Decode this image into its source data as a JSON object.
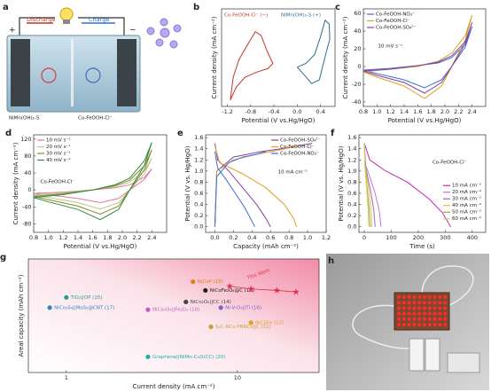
{
  "illustration": {
    "panel": "a",
    "discharge": "Discharge",
    "charge": "Charge",
    "plus": "+",
    "minus": "−",
    "left_electrode": "NiMn(OH)₂-S",
    "right_electrode": "Co-FeOOH-Cl⁻"
  },
  "photo": {
    "panel": "h"
  },
  "chart_data": [
    {
      "type": "line",
      "panel": "b",
      "xlabel": "Potential (V vs.Hg/HgO)",
      "ylabel": "Current density (mA cm⁻²)",
      "xlim": [
        -1.3,
        0.65
      ],
      "xticks": [
        -1.2,
        -0.8,
        -0.4,
        {
          "value": 0,
          "label": "0.0"
        },
        0.4
      ],
      "ylim": [
        -35,
        42
      ],
      "legend": "top",
      "series": [
        {
          "name": "Co-FeOOH-Cl⁻ (−)",
          "color": "#c0392b",
          "x": [
            -1.15,
            -1.1,
            -1.0,
            -0.85,
            -0.72,
            -0.62,
            -0.52,
            -0.42,
            -0.5,
            -0.7,
            -0.9,
            -1.05,
            -1.15
          ],
          "values": [
            -30,
            -12,
            2,
            14,
            24,
            21,
            9,
            -1,
            -5,
            -8,
            -12,
            -20,
            -30
          ]
        },
        {
          "name": "NiMn(OH)₂-S (+)",
          "color": "#2e6f8e",
          "x": [
            0.0,
            0.15,
            0.3,
            0.4,
            0.48,
            0.55,
            0.56,
            0.5,
            0.38,
            0.25,
            0.12,
            0.0
          ],
          "values": [
            -4,
            -1,
            6,
            20,
            33,
            30,
            18,
            8,
            -14,
            -17,
            -10,
            -4
          ]
        }
      ]
    },
    {
      "type": "line",
      "panel": "c",
      "xlabel": "Potential (V vs.Hg/HgO)",
      "ylabel": "Current density (mA cm⁻²)",
      "annotation": "10 mV s⁻¹",
      "xlim": [
        0.8,
        2.6
      ],
      "xticks": [
        0.8,
        {
          "value": 1,
          "label": "1.0"
        },
        1.2,
        1.4,
        1.6,
        1.8,
        {
          "value": 2,
          "label": "2.0"
        },
        2.2,
        2.4
      ],
      "ylim": [
        -45,
        65
      ],
      "yticks": [
        -40,
        -20,
        0,
        20,
        40,
        60
      ],
      "legend": "upper left",
      "x": [
        0.8,
        1.2,
        1.6,
        1.9,
        2.1,
        2.3,
        2.4,
        2.3,
        2.1,
        1.95,
        1.7,
        1.4,
        1.0,
        0.8
      ],
      "series": [
        {
          "name": "Co-FeOOH-NO₃⁻",
          "color": "#3a6fd8",
          "values": [
            -4,
            -2,
            1,
            4,
            10,
            25,
            45,
            22,
            0,
            -15,
            -24,
            -15,
            -8,
            -4
          ]
        },
        {
          "name": "Co-FeOOH-Cl⁻",
          "color": "#e0a020",
          "values": [
            -6,
            -3,
            0,
            6,
            15,
            35,
            58,
            30,
            0,
            -22,
            -36,
            -22,
            -12,
            -6
          ]
        },
        {
          "name": "Co-FeOOH-SO₄²⁻",
          "color": "#8a3fa0",
          "values": [
            -5,
            -3,
            1,
            5,
            12,
            28,
            50,
            26,
            0,
            -18,
            -30,
            -18,
            -10,
            -5
          ]
        }
      ]
    },
    {
      "type": "line",
      "panel": "d",
      "xlabel": "Potential (V vs.Hg/HgO)",
      "ylabel": "Current density (mA cm⁻²)",
      "annotation": "Co-FeOOH-Cl⁻",
      "xlim": [
        0.8,
        2.6
      ],
      "xticks": [
        0.8,
        {
          "value": 1,
          "label": "1.0"
        },
        1.2,
        1.4,
        1.6,
        1.8,
        {
          "value": 2,
          "label": "2.0"
        },
        2.2,
        2.4
      ],
      "ylim": [
        -100,
        130
      ],
      "yticks": [
        -80,
        -40,
        0,
        40,
        80,
        120
      ],
      "legend": "upper left",
      "x": [
        0.8,
        1.2,
        1.6,
        1.9,
        2.1,
        2.3,
        2.4,
        2.3,
        2.1,
        1.95,
        1.7,
        1.4,
        1.0,
        0.8
      ],
      "series": [
        {
          "name": "10 mV s⁻¹",
          "color": "#e07aa0",
          "values": [
            -8,
            -5,
            0,
            5,
            12,
            30,
            50,
            25,
            0,
            -20,
            -30,
            -20,
            -12,
            -8
          ]
        },
        {
          "name": "20 mV s⁻¹",
          "color": "#b5c98a",
          "values": [
            -12,
            -7,
            0,
            8,
            18,
            45,
            75,
            38,
            0,
            -30,
            -45,
            -30,
            -18,
            -12
          ]
        },
        {
          "name": "30 mV s⁻¹",
          "color": "#8a8a2a",
          "values": [
            -15,
            -9,
            0,
            10,
            23,
            57,
            95,
            48,
            0,
            -38,
            -57,
            -38,
            -23,
            -15
          ]
        },
        {
          "name": "40 mV s⁻¹",
          "color": "#2e8b3e",
          "values": [
            -18,
            -11,
            0,
            12,
            28,
            69,
            112,
            58,
            0,
            -46,
            -70,
            -46,
            -28,
            -18
          ]
        }
      ]
    },
    {
      "type": "line",
      "panel": "e",
      "xlabel": "Capacity (mAh cm⁻²)",
      "ylabel": "Potential (V vs. Hg/HgO)",
      "annotation": "10 mA cm⁻²",
      "xlim": [
        -0.1,
        1.2
      ],
      "xticks": [
        {
          "value": 0,
          "label": "0.0"
        },
        0.2,
        0.4,
        0.6,
        0.8,
        {
          "value": 1,
          "label": "1.0"
        },
        1.2
      ],
      "ylim": [
        -0.1,
        1.65
      ],
      "yticks": [
        {
          "value": 0,
          "label": "0.0"
        },
        0.2,
        0.4,
        0.6,
        0.8,
        {
          "value": 1,
          "label": "1.0"
        },
        1.2,
        1.4,
        1.6
      ],
      "legend": "upper right",
      "series": [
        {
          "name": "Co-FeOOH-SO₄²⁻",
          "color": "#8a3fa0",
          "x": [
            0,
            0.02,
            0.2,
            0.5,
            0.8,
            1.05,
            null,
            0,
            0.03,
            0.15,
            0.3,
            0.45,
            0.55,
            0.6
          ],
          "values": [
            0,
            1.0,
            1.25,
            1.35,
            1.42,
            1.5,
            null,
            1.5,
            1.2,
            1.0,
            0.7,
            0.4,
            0.15,
            0
          ]
        },
        {
          "name": "Co-FeOOH-Cl⁻",
          "color": "#e0a020",
          "x": [
            0,
            0.02,
            0.2,
            0.45,
            0.7,
            0.9,
            null,
            0,
            0.05,
            0.3,
            0.55,
            0.75,
            0.85,
            0.88
          ],
          "values": [
            0,
            1.0,
            1.2,
            1.3,
            1.38,
            1.45,
            null,
            1.45,
            1.15,
            0.95,
            0.7,
            0.4,
            0.15,
            0
          ]
        },
        {
          "name": "Co-FeOOH-NO₃⁻",
          "color": "#3a6fd8",
          "x": [
            0,
            0.02,
            0.15,
            0.3,
            0.45,
            0.55,
            null,
            0,
            0.03,
            0.12,
            0.22,
            0.32,
            0.4,
            0.43
          ],
          "values": [
            0,
            0.9,
            1.15,
            1.25,
            1.3,
            1.35,
            null,
            1.35,
            1.05,
            0.85,
            0.6,
            0.35,
            0.1,
            0
          ]
        }
      ]
    },
    {
      "type": "line",
      "panel": "f",
      "xlabel": "Time (s)",
      "ylabel": "Potential (V vs. Hg/HgO)",
      "annotation": "Co-FeOOH-Cl⁻",
      "xlim": [
        -20,
        450
      ],
      "xticks": [
        0,
        100,
        200,
        300,
        400
      ],
      "ylim": [
        -0.1,
        1.65
      ],
      "yticks": [
        {
          "value": 0,
          "label": "0.0"
        },
        0.2,
        0.4,
        0.6,
        0.8,
        {
          "value": 1,
          "label": "1.0"
        },
        1.2,
        1.4,
        1.6
      ],
      "legend": "center right",
      "series": [
        {
          "name": "10 mA cm⁻²",
          "color": "#c02ab0",
          "x": [
            0,
            20,
            80,
            160,
            240,
            290,
            320
          ],
          "values": [
            1.5,
            1.2,
            1.0,
            0.8,
            0.5,
            0.25,
            0
          ]
        },
        {
          "name": "20 mA cm⁻²",
          "color": "#d070d0",
          "x": [
            0,
            5,
            20,
            40,
            55,
            62
          ],
          "values": [
            1.5,
            1.1,
            0.9,
            0.6,
            0.3,
            0
          ]
        },
        {
          "name": "30 mA cm⁻²",
          "color": "#9a6ab0",
          "x": [
            0,
            4,
            12,
            25,
            35,
            40
          ],
          "values": [
            1.5,
            1.1,
            0.9,
            0.6,
            0.3,
            0
          ]
        },
        {
          "name": "40 mA cm⁻²",
          "color": "#e0c040",
          "x": [
            0,
            3,
            9,
            18,
            25,
            28
          ],
          "values": [
            1.5,
            1.1,
            0.9,
            0.6,
            0.3,
            0
          ]
        },
        {
          "name": "50 mA cm⁻²",
          "color": "#a0a040",
          "x": [
            0,
            2,
            6,
            12,
            18,
            21
          ],
          "values": [
            1.5,
            1.1,
            0.9,
            0.6,
            0.3,
            0
          ]
        },
        {
          "name": "60 mA cm⁻²",
          "color": "#c8d860",
          "x": [
            0,
            2,
            5,
            10,
            14,
            16
          ],
          "values": [
            1.5,
            1.1,
            0.9,
            0.6,
            0.3,
            0
          ]
        }
      ]
    },
    {
      "type": "scatter",
      "panel": "g",
      "xlabel": "Current density (mA cm⁻²)",
      "ylabel": "Areal capacity (mAh cm⁻²)",
      "xlog": true,
      "ylog": true,
      "xlim": [
        0.6,
        30
      ],
      "xticks": [
        1,
        10
      ],
      "ylim": [
        0.02,
        3
      ],
      "series": [
        {
          "name": "NiCoP (19)",
          "color": "#e07b20",
          "x": [
            5.5
          ],
          "values": [
            1.1
          ]
        },
        {
          "name": "NiCoFe₂O₄@C (13)",
          "color": "#222222",
          "x": [
            6.5
          ],
          "values": [
            0.75
          ]
        },
        {
          "name": "TiO₂||OP (15)",
          "color": "#2a9d8f",
          "x": [
            1
          ],
          "values": [
            0.55
          ]
        },
        {
          "name": "NiCo₂O₄||CC (14)",
          "color": "#444444",
          "x": [
            5
          ],
          "values": [
            0.45
          ]
        },
        {
          "name": "NiCo₂O₄||Fe₂O₃ (10)",
          "color": "#c060c0",
          "x": [
            3
          ],
          "values": [
            0.32
          ]
        },
        {
          "name": "NiCo₂S₄||MoS₂@CNT (17)",
          "color": "#3a7fc0",
          "x": [
            0.8
          ],
          "values": [
            0.35
          ]
        },
        {
          "name": "Ni-V-O₃||Ti (16)",
          "color": "#8060c0",
          "x": [
            8
          ],
          "values": [
            0.35
          ]
        },
        {
          "name": "NiCoFe (12)",
          "color": "#e0a020",
          "x": [
            12
          ],
          "values": [
            0.18
          ]
        },
        {
          "name": "S₄C-NCs-PBNCs||C (11)",
          "color": "#c8a040",
          "x": [
            7
          ],
          "values": [
            0.15
          ]
        },
        {
          "name": "Graphene||NiMn-CuS(CC) (20)",
          "color": "#20b0a0",
          "x": [
            3
          ],
          "values": [
            0.04
          ]
        },
        {
          "name": "This Work",
          "color": "#e03050",
          "marker": "star",
          "x": [
            9,
            12,
            17,
            22
          ],
          "values": [
            0.9,
            0.8,
            0.75,
            0.7
          ]
        }
      ]
    }
  ]
}
